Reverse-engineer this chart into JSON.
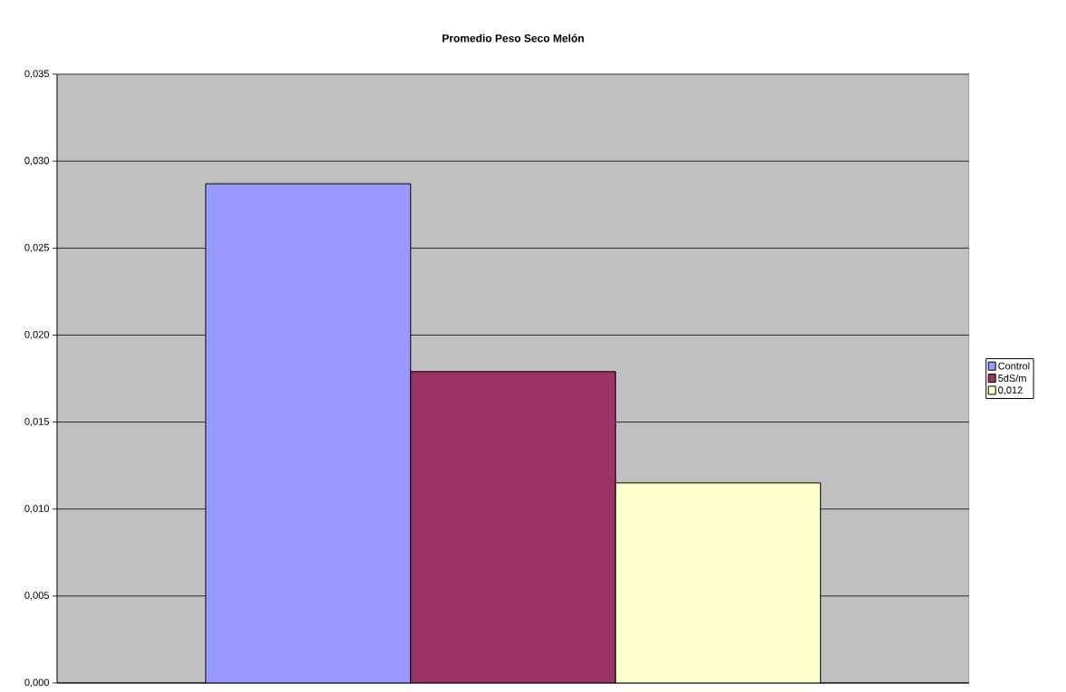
{
  "chart_data": {
    "type": "bar",
    "title": "Promedio Peso Seco Melón",
    "categories": [
      null
    ],
    "series": [
      {
        "name": "Control",
        "color": "#9999ff",
        "values": [
          0.0287
        ]
      },
      {
        "name": "5dS/m",
        "color": "#993366",
        "values": [
          0.0179
        ]
      },
      {
        "name": "0,012",
        "color": "#ffffcc",
        "values": [
          0.0115
        ]
      }
    ],
    "ylim": [
      0,
      0.035
    ],
    "yticks": [
      {
        "value": 0,
        "label": "0,000"
      },
      {
        "value": 0.005,
        "label": "0,005"
      },
      {
        "value": 0.01,
        "label": "0,010"
      },
      {
        "value": 0.015,
        "label": "0,015"
      },
      {
        "value": 0.02,
        "label": "0,020"
      },
      {
        "value": 0.025,
        "label": "0,025"
      },
      {
        "value": 0.03,
        "label": "0,030"
      },
      {
        "value": 0.035,
        "label": "0,035"
      }
    ],
    "grid": "y",
    "legend": "right"
  }
}
